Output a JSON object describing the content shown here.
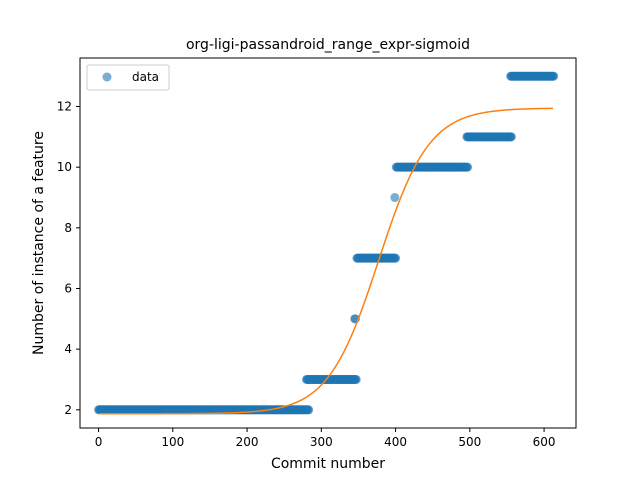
{
  "chart_data": {
    "type": "scatter",
    "title": "org-ligi-passandroid_range_expr-sigmoid",
    "xlabel": "Commit number",
    "ylabel": "Number of instance of a feature",
    "xlim": [
      -25,
      643
    ],
    "ylim": [
      1.4,
      13.6
    ],
    "x_ticks": [
      0,
      100,
      200,
      300,
      400,
      500,
      600
    ],
    "y_ticks": [
      2,
      4,
      6,
      8,
      10,
      12
    ],
    "grid": false,
    "legend": {
      "position": "top-left",
      "entries": [
        "data"
      ]
    },
    "series": [
      {
        "name": "data",
        "kind": "points",
        "color": "#1f77b4",
        "alpha": 0.6,
        "segments": [
          {
            "x_start": 0,
            "x_end": 283,
            "y": 2
          },
          {
            "x_start": 280,
            "x_end": 347,
            "y": 3
          },
          {
            "x_start": 345,
            "x_end": 346,
            "y": 5
          },
          {
            "x_start": 348,
            "x_end": 400,
            "y": 7
          },
          {
            "x_start": 399,
            "x_end": 399,
            "y": 9
          },
          {
            "x_start": 401,
            "x_end": 497,
            "y": 10
          },
          {
            "x_start": 496,
            "x_end": 556,
            "y": 11
          },
          {
            "x_start": 555,
            "x_end": 613,
            "y": 13
          }
        ]
      },
      {
        "kind": "sigmoid_fit",
        "color": "#ff7f0e",
        "x_range": [
          0,
          612
        ],
        "lower": 1.87,
        "upper": 11.95,
        "midpoint": 377,
        "scale": 34
      }
    ]
  }
}
